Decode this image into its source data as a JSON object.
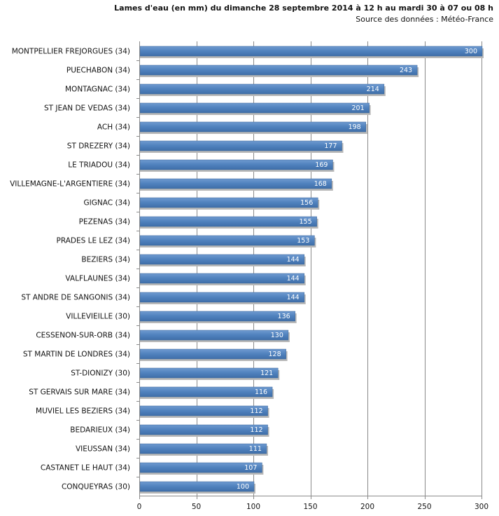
{
  "chart_data": {
    "type": "bar",
    "orientation": "horizontal",
    "title": "Lames d'eau (en mm) du dimanche  28 septembre 2014 à 12 h au mardi 30 à 07 ou 08 h",
    "subtitle": "Source des données : Météo-France",
    "xlabel": "",
    "ylabel": "",
    "xlim": [
      0,
      300
    ],
    "xticks": [
      0,
      50,
      100,
      150,
      200,
      250,
      300
    ],
    "grid": true,
    "bar_color": "#4f81bd",
    "categories": [
      "MONTPELLIER FREJORGUES (34)",
      "PUECHABON (34)",
      "MONTAGNAC (34)",
      "ST JEAN DE VEDAS (34)",
      "ACH (34)",
      "ST DREZERY (34)",
      "LE TRIADOU (34)",
      "VILLEMAGNE-L'ARGENTIERE (34)",
      "GIGNAC (34)",
      "PEZENAS (34)",
      "PRADES LE LEZ (34)",
      "BEZIERS (34)",
      "VALFLAUNES (34)",
      "ST ANDRE DE SANGONIS (34)",
      "VILLEVIEILLE (30)",
      "CESSENON-SUR-ORB (34)",
      "ST MARTIN DE LONDRES (34)",
      "ST-DIONIZY (30)",
      "ST GERVAIS SUR MARE (34)",
      "MUVIEL LES BEZIERS (34)",
      "BEDARIEUX (34)",
      "VIEUSSAN (34)",
      "CASTANET LE HAUT (34)",
      "CONQUEYRAS (30)"
    ],
    "values": [
      300,
      243,
      214,
      201,
      198,
      177,
      169,
      168,
      156,
      155,
      153,
      144,
      144,
      144,
      136,
      130,
      128,
      121,
      116,
      112,
      112,
      111,
      107,
      100
    ]
  }
}
